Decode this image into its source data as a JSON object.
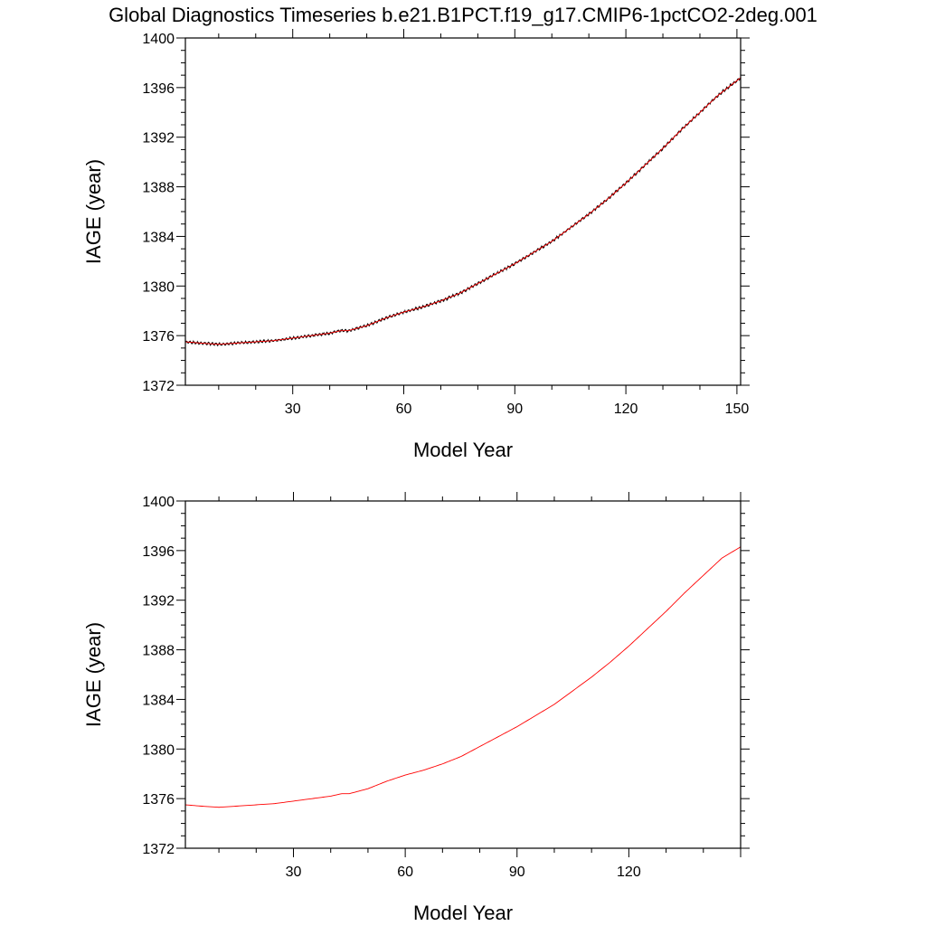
{
  "title": "Global Diagnostics Timeseries b.e21.B1PCT.f19_g17.CMIP6-1pctCO2-2deg.001",
  "colors": {
    "series_line": "#ff0000",
    "monthly_line": "#000000",
    "axis": "#000000"
  },
  "chart_data": [
    {
      "type": "line",
      "xlabel": "Model Year",
      "ylabel": "IAGE (year)",
      "xlim": [
        1,
        151
      ],
      "ylim": [
        1372,
        1400
      ],
      "xticks": [
        "30",
        "60",
        "90",
        "120",
        "150"
      ],
      "yticks": [
        "1400",
        "1396",
        "1392",
        "1388",
        "1384",
        "1380",
        "1376",
        "1372"
      ],
      "grid": false,
      "series": [
        {
          "x": [
            1,
            5,
            10,
            15,
            20,
            25,
            30,
            35,
            40,
            43,
            45,
            50,
            55,
            60,
            65,
            70,
            75,
            80,
            85,
            90,
            95,
            100,
            105,
            110,
            115,
            120,
            125,
            130,
            135,
            140,
            145,
            151
          ],
          "y": [
            1375.5,
            1375.4,
            1375.3,
            1375.4,
            1375.5,
            1375.6,
            1375.8,
            1376.0,
            1376.2,
            1376.4,
            1376.4,
            1376.8,
            1377.4,
            1377.9,
            1378.3,
            1378.8,
            1379.4,
            1380.2,
            1381.0,
            1381.8,
            1382.7,
            1383.6,
            1384.7,
            1385.8,
            1387.0,
            1388.3,
            1389.7,
            1391.1,
            1392.6,
            1394.0,
            1395.4,
            1396.8
          ]
        }
      ],
      "monthly_noise": true
    },
    {
      "type": "line",
      "xlabel": "Model Year",
      "ylabel": "IAGE (year)",
      "xlim": [
        1,
        150
      ],
      "ylim": [
        1372,
        1400
      ],
      "xticks": [
        "30",
        "60",
        "90",
        "120"
      ],
      "yticks": [
        "1400",
        "1396",
        "1392",
        "1388",
        "1384",
        "1380",
        "1376",
        "1372"
      ],
      "grid": false,
      "series": [
        {
          "x": [
            1,
            5,
            10,
            15,
            20,
            25,
            30,
            35,
            40,
            43,
            45,
            50,
            55,
            60,
            65,
            70,
            75,
            80,
            85,
            90,
            95,
            100,
            105,
            110,
            115,
            120,
            125,
            130,
            135,
            140,
            145,
            150
          ],
          "y": [
            1375.5,
            1375.4,
            1375.3,
            1375.4,
            1375.5,
            1375.6,
            1375.8,
            1376.0,
            1376.2,
            1376.4,
            1376.4,
            1376.8,
            1377.4,
            1377.9,
            1378.3,
            1378.8,
            1379.4,
            1380.2,
            1381.0,
            1381.8,
            1382.7,
            1383.6,
            1384.7,
            1385.8,
            1387.0,
            1388.3,
            1389.7,
            1391.1,
            1392.6,
            1394.0,
            1395.4,
            1396.3
          ]
        }
      ],
      "monthly_noise": false
    }
  ]
}
